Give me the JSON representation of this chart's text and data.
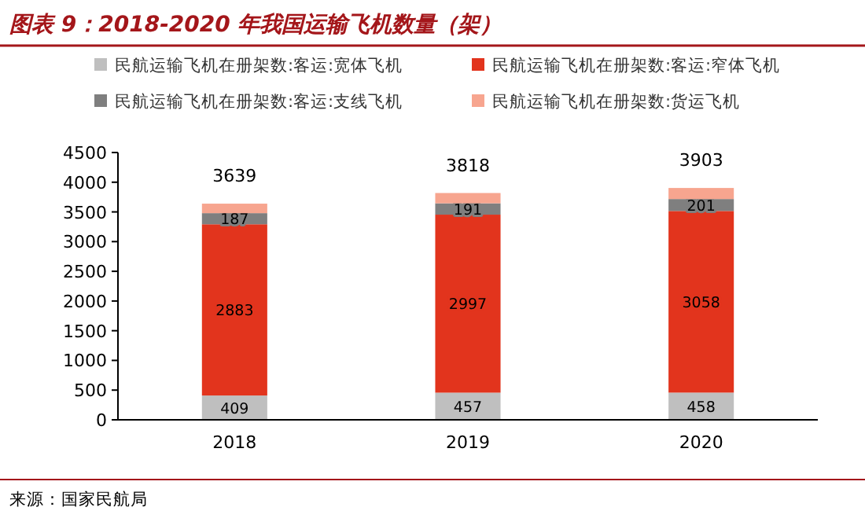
{
  "chart_data": {
    "type": "bar",
    "title": "图表 9：2018-2020 年我国运输飞机数量（架）",
    "categories": [
      "2018",
      "2019",
      "2020"
    ],
    "stacked": true,
    "legend": "top",
    "grid": false,
    "ylim": [
      0,
      4500
    ],
    "yticks": [
      0,
      500,
      1000,
      1500,
      2000,
      2500,
      3000,
      3500,
      4000,
      4500
    ],
    "series": [
      {
        "name": "民航运输飞机在册架数:客运:宽体飞机",
        "color": "#bfbfbf",
        "values": [
          409,
          457,
          458
        ],
        "value_labels": [
          "409",
          "457",
          "458"
        ]
      },
      {
        "name": "民航运输飞机在册架数:客运:窄体飞机",
        "color": "#e2341d",
        "values": [
          2883,
          2997,
          3058
        ],
        "value_labels": [
          "2883",
          "2997",
          "3058"
        ]
      },
      {
        "name": "民航运输飞机在册架数:客运:支线飞机",
        "color": "#7f7f7f",
        "values": [
          187,
          191,
          201
        ],
        "value_labels": [
          "187",
          "191",
          "201"
        ]
      },
      {
        "name": "民航运输飞机在册架数:货运飞机",
        "color": "#f7a58f",
        "values": [
          160,
          173,
          186
        ]
      }
    ],
    "totals": [
      "3639",
      "3818",
      "3903"
    ],
    "annotations": [
      "来源：国家民航局"
    ]
  }
}
